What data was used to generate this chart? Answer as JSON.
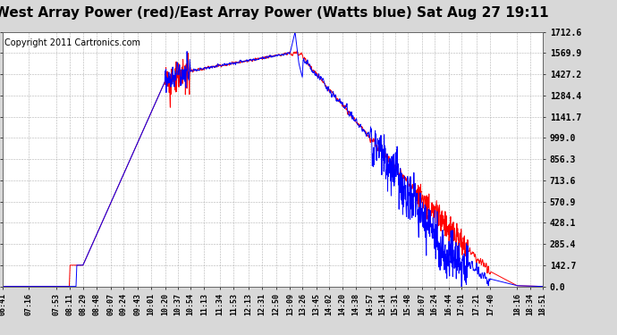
{
  "title": "West Array Power (red)/East Array Power (Watts blue) Sat Aug 27 19:11",
  "copyright": "Copyright 2011 Cartronics.com",
  "bg_color": "#d8d8d8",
  "plot_bg_color": "#ffffff",
  "grid_color": "#aaaaaa",
  "ymin": 0.0,
  "ymax": 1712.6,
  "yticks": [
    0.0,
    142.7,
    285.4,
    428.1,
    570.9,
    713.6,
    856.3,
    999.0,
    1141.7,
    1284.4,
    1427.2,
    1569.9,
    1712.6
  ],
  "x_labels": [
    "06:41",
    "07:16",
    "07:53",
    "08:11",
    "08:29",
    "08:48",
    "09:07",
    "09:24",
    "09:43",
    "10:01",
    "10:20",
    "10:37",
    "10:54",
    "11:13",
    "11:34",
    "11:53",
    "12:13",
    "12:31",
    "12:50",
    "13:09",
    "13:26",
    "13:45",
    "14:02",
    "14:20",
    "14:38",
    "14:57",
    "15:14",
    "15:31",
    "15:48",
    "16:07",
    "16:24",
    "16:44",
    "17:01",
    "17:21",
    "17:40",
    "18:16",
    "18:34",
    "18:51"
  ],
  "red_line_color": "#ff0000",
  "blue_line_color": "#0000ff",
  "title_fontsize": 11,
  "copyright_fontsize": 7
}
